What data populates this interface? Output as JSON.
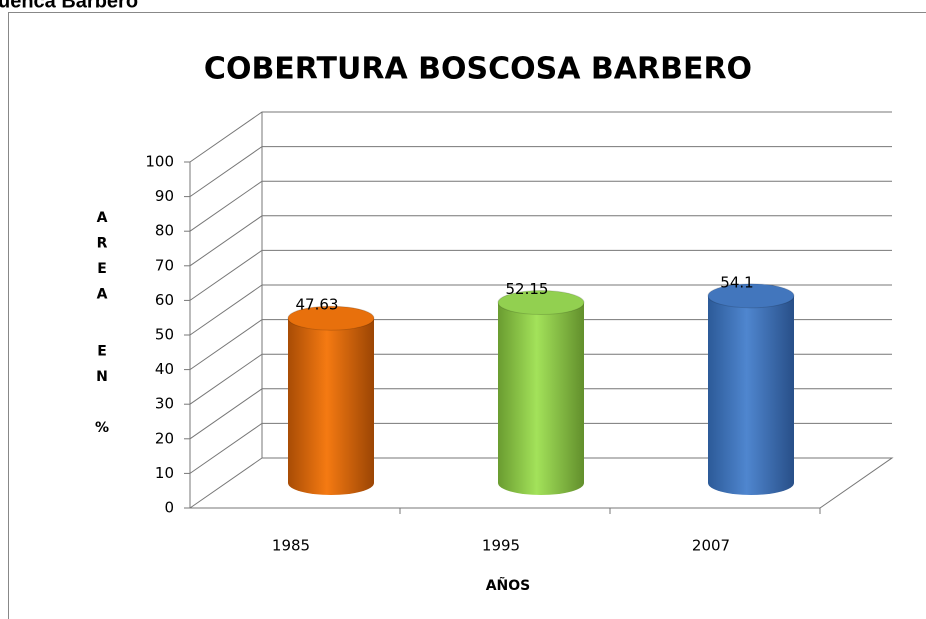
{
  "header": "uenca Barbero",
  "chart_data": {
    "type": "bar3d",
    "title": "COBERTURA BOSCOSA BARBERO",
    "categories": [
      "1985",
      "1995",
      "2007"
    ],
    "values": [
      47.63,
      52.15,
      54.1
    ],
    "colors": [
      "#e8700c",
      "#92d050",
      "#4276bd"
    ],
    "ylabel": "AREA EN %",
    "xlabel": "AÑOS",
    "ylim": [
      0,
      100
    ],
    "yticks": [
      0,
      10,
      20,
      30,
      40,
      50,
      60,
      70,
      80,
      90,
      100
    ],
    "grid": true
  }
}
